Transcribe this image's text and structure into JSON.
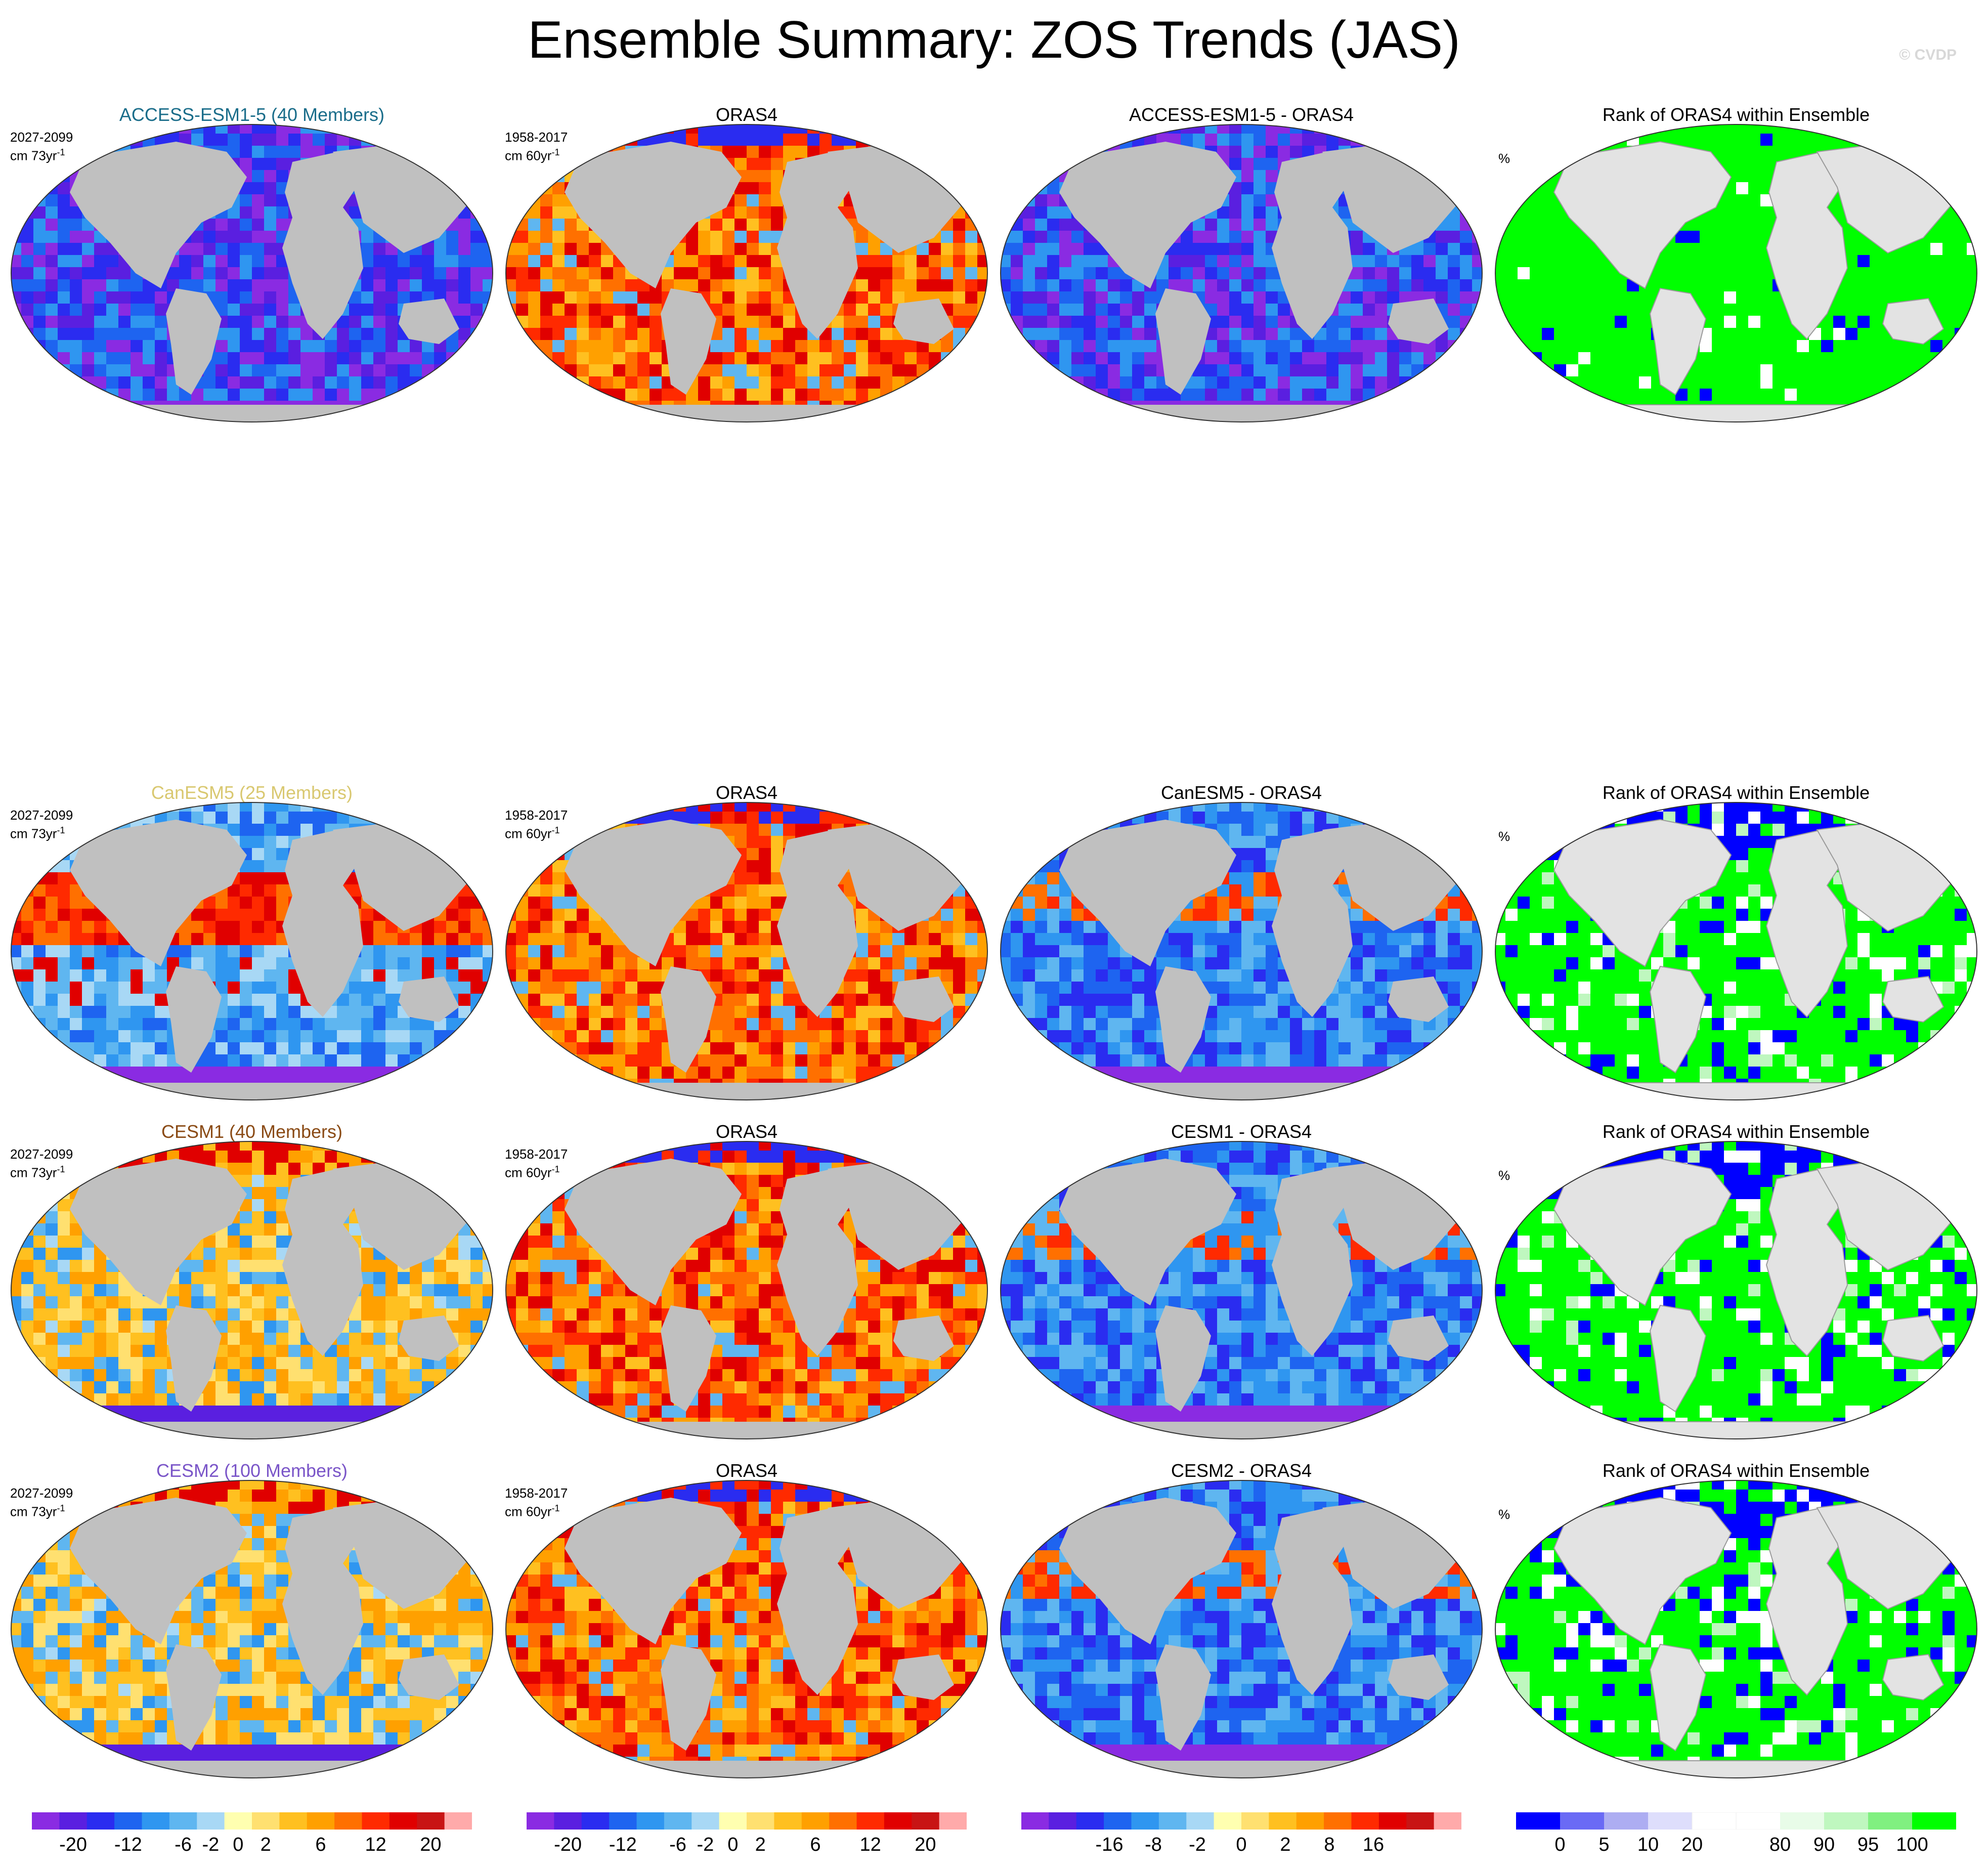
{
  "title": "Ensemble Summary: ZOS Trends (JAS)",
  "credit": "© CVDP",
  "colors": {
    "trend_scale": [
      "#8a2be2",
      "#5a1fe0",
      "#2a2cf0",
      "#1e64f0",
      "#2f96f0",
      "#5fb6f0",
      "#a8d8f5",
      "#ffffb0",
      "#ffe070",
      "#ffc020",
      "#ffa000",
      "#ff7000",
      "#ff2a00",
      "#e00000",
      "#c81414",
      "#ffaaaa"
    ],
    "rank_scale": [
      "#0000ff",
      "#6a6af5",
      "#adadf2",
      "#dedefc",
      "#ffffff",
      "#ffffff",
      "#e8fce8",
      "#bff7bf",
      "#80f080",
      "#00ff00"
    ],
    "land": "#c0c0c0",
    "rank_land": "#e3e3e3",
    "model_title_colors": {
      "ACCESS-ESM1-5": "#1a6d8a",
      "CanESM5": "#d9c870",
      "CESM1": "#8a4a14",
      "CESM2": "#7a55c8"
    }
  },
  "rows": [
    {
      "model_title": "ACCESS-ESM1-5 (40 Members)",
      "model_period": "2027-2099",
      "model_units": "cm 73yr",
      "obs_title": "ORAS4",
      "obs_period": "1958-2017",
      "obs_units": "cm 60yr",
      "diff_title": "ACCESS-ESM1-5 - ORAS4",
      "rank_title": "Rank of ORAS4 within Ensemble",
      "rank_units": "%",
      "pattern": {
        "model": "neg",
        "obs": "pos",
        "diff": "neg",
        "rank": "green"
      }
    },
    {
      "model_title": "CanESM5 (25 Members)",
      "model_period": "2027-2099",
      "model_units": "cm 73yr",
      "obs_title": "ORAS4",
      "obs_period": "1958-2017",
      "obs_units": "cm 60yr",
      "diff_title": "CanESM5 - ORAS4",
      "rank_title": "Rank of ORAS4 within Ensemble",
      "rank_units": "%",
      "pattern": {
        "model": "mixed",
        "obs": "pos",
        "diff": "mixedneg",
        "rank": "mixed"
      }
    },
    {
      "model_title": "CESM1 (40 Members)",
      "model_period": "2027-2099",
      "model_units": "cm 73yr",
      "obs_title": "ORAS4",
      "obs_period": "1958-2017",
      "obs_units": "cm 60yr",
      "diff_title": "CESM1 - ORAS4",
      "rank_title": "Rank of ORAS4 within Ensemble",
      "rank_units": "%",
      "pattern": {
        "model": "warm",
        "obs": "pos",
        "diff": "mixedneg",
        "rank": "mixed"
      }
    },
    {
      "model_title": "CESM2 (100 Members)",
      "model_period": "2027-2099",
      "model_units": "cm 73yr",
      "obs_title": "ORAS4",
      "obs_period": "1958-2017",
      "obs_units": "cm 60yr",
      "diff_title": "CESM2 - ORAS4",
      "rank_title": "Rank of ORAS4 within Ensemble",
      "rank_units": "%",
      "pattern": {
        "model": "warm",
        "obs": "pos",
        "diff": "mixedneg",
        "rank": "mixed"
      }
    }
  ],
  "units_superscript": "-1",
  "colorbars": [
    {
      "labels": [
        "-20",
        "-12",
        "-6",
        "-2",
        "0",
        "2",
        "6",
        "12",
        "20"
      ]
    },
    {
      "labels": [
        "-20",
        "-12",
        "-6",
        "-2",
        "0",
        "2",
        "6",
        "12",
        "20"
      ]
    },
    {
      "labels": [
        "-16",
        "-8",
        "-2",
        "0",
        "2",
        "8",
        "16"
      ]
    },
    {
      "labels": [
        "0",
        "5",
        "10",
        "20",
        "80",
        "90",
        "95",
        "100"
      ]
    }
  ]
}
